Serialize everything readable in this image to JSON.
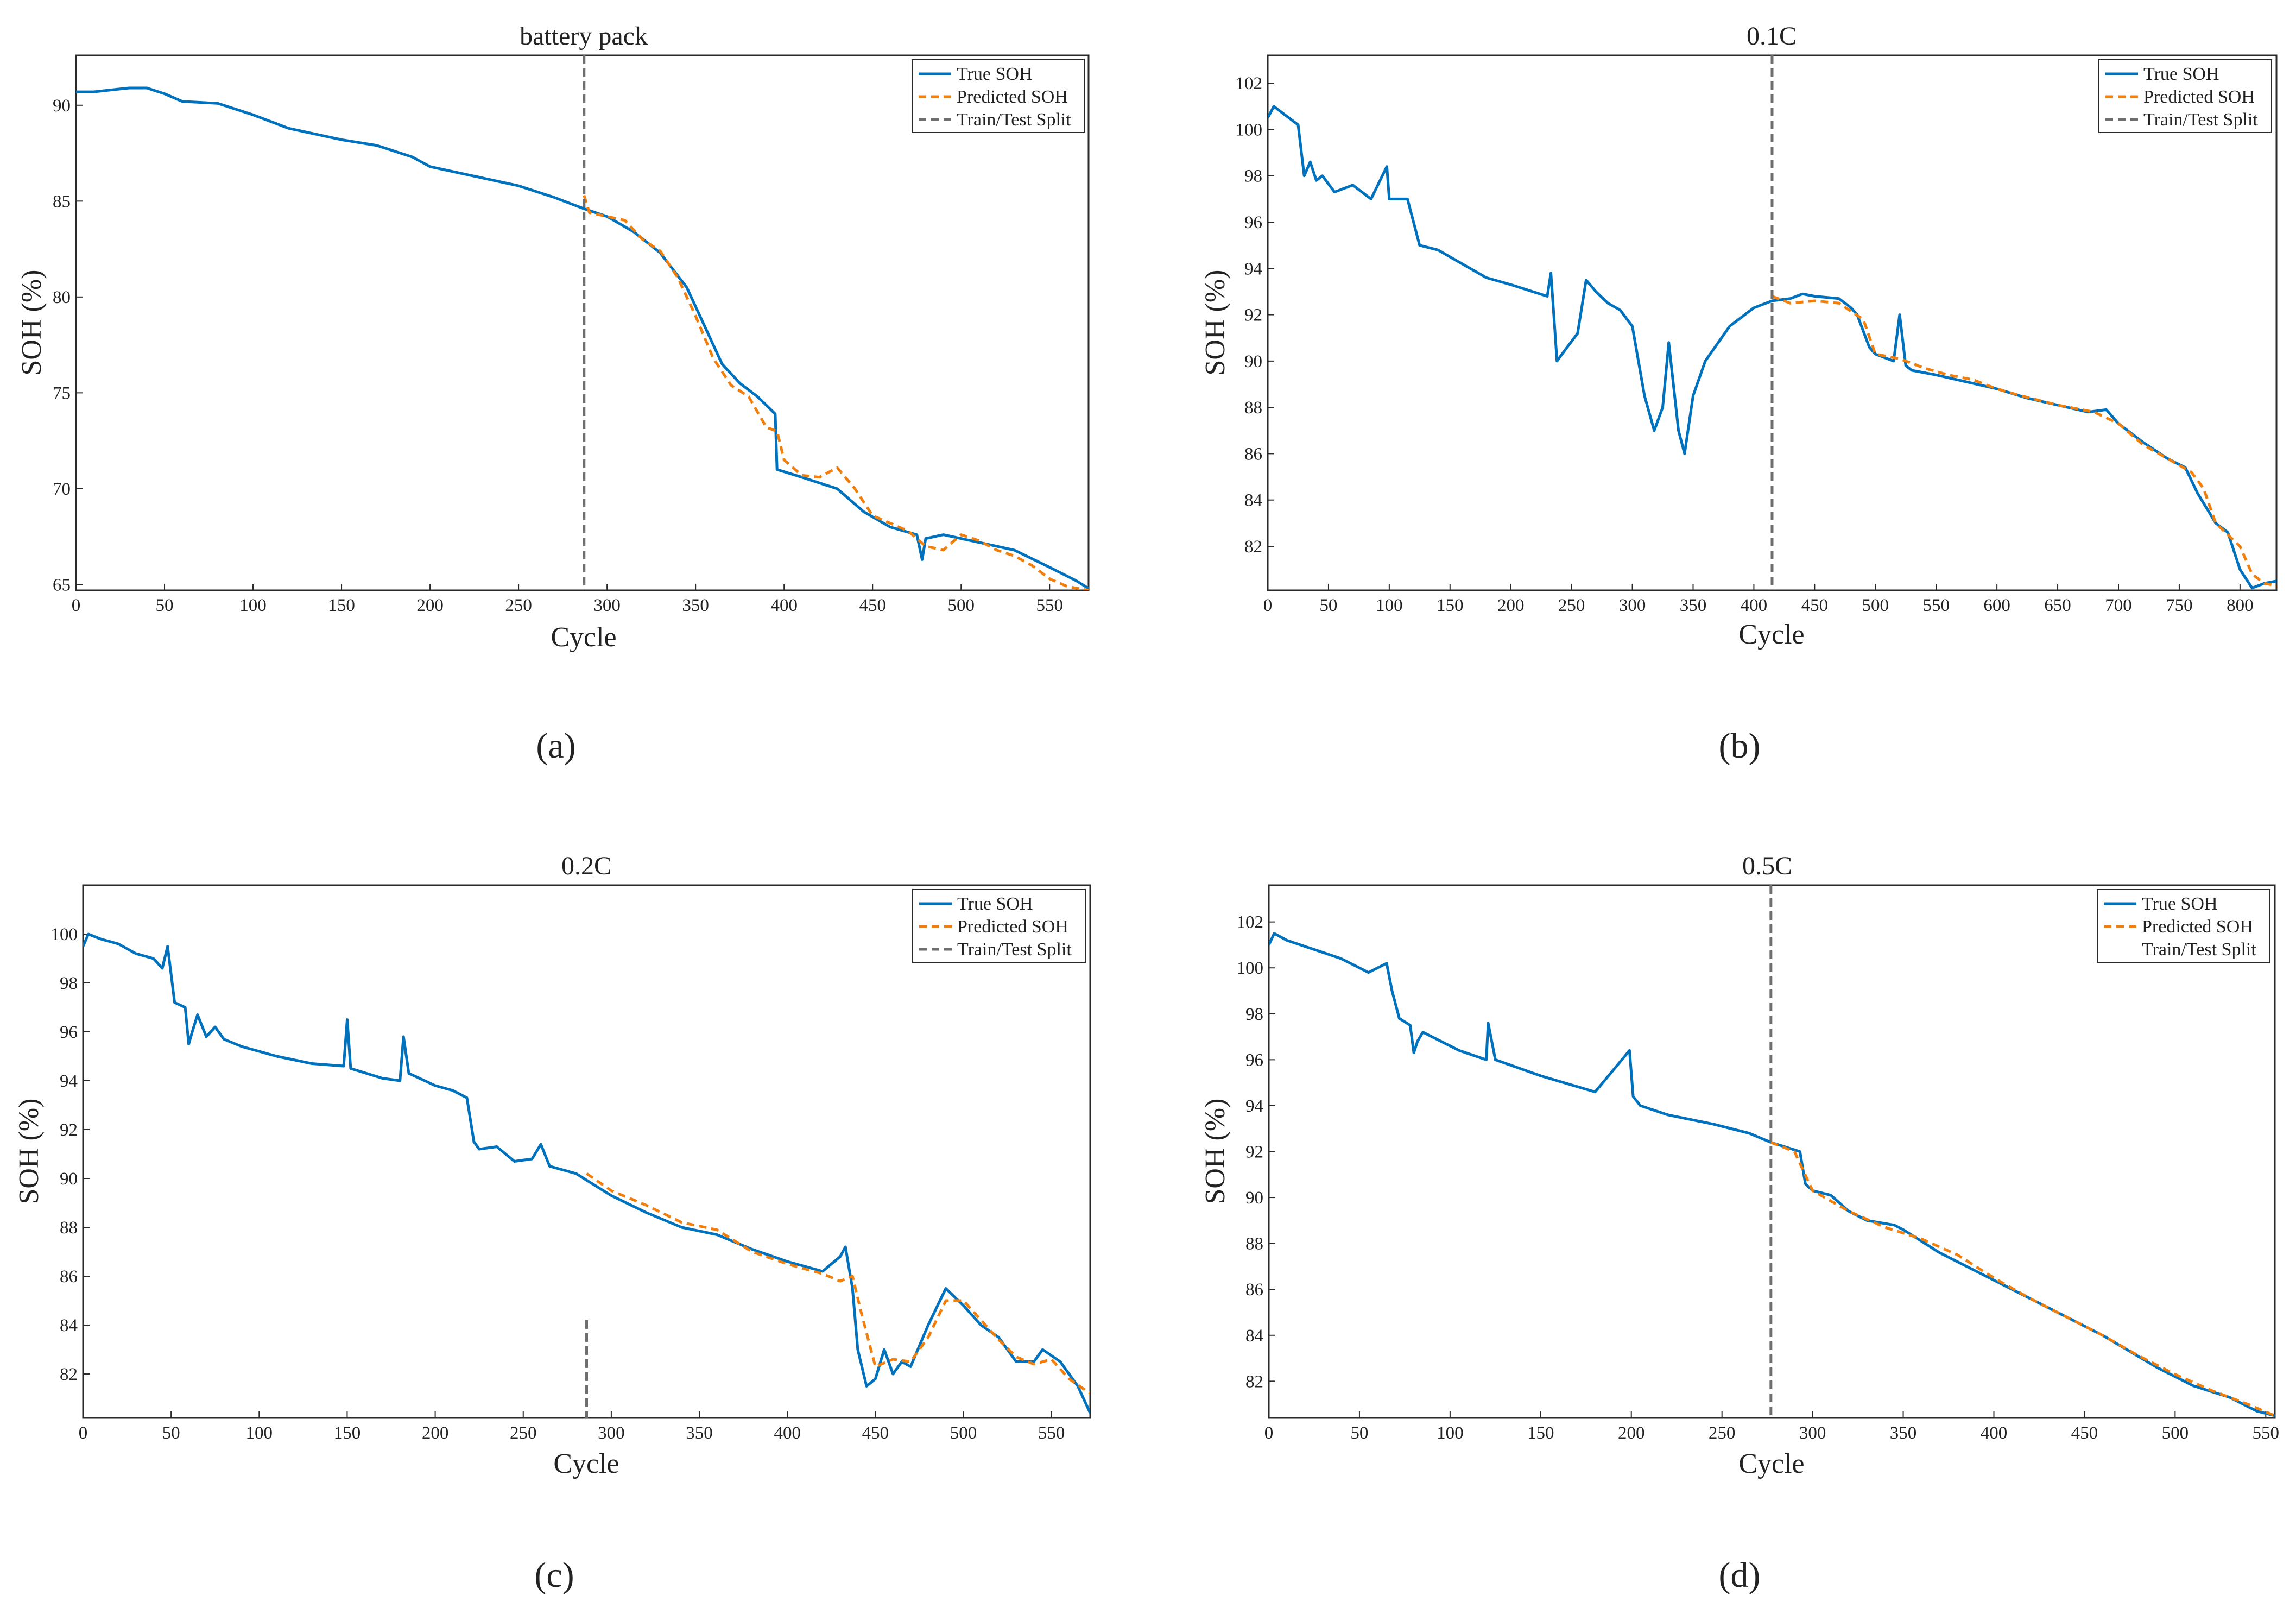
{
  "colors": {
    "true_soh": "#0072BD",
    "predicted_soh": "#F07F0E",
    "split_line": "#6E6E6E",
    "axis": "#2A2A2A"
  },
  "chart_data": [
    {
      "panel": "a",
      "caption": "(a)",
      "type": "line",
      "title": "battery pack",
      "xlabel": "Cycle",
      "ylabel": "SOH (%)",
      "xlim": [
        0,
        572
      ],
      "ylim": [
        64.7,
        92.6
      ],
      "xticks": [
        0,
        50,
        100,
        150,
        200,
        250,
        300,
        350,
        400,
        450,
        500,
        550
      ],
      "yticks": [
        65,
        70,
        75,
        80,
        85,
        90
      ],
      "grid": false,
      "legend": {
        "position": "top-right",
        "entries": [
          "True SOH",
          "Predicted SOH",
          "Train/Test Split"
        ]
      },
      "split": {
        "x": 287,
        "y_from": 64.7,
        "y_to": 92.6
      },
      "series": [
        {
          "name": "True SOH",
          "style": "solid",
          "x": [
            0,
            10,
            20,
            30,
            40,
            50,
            60,
            80,
            100,
            120,
            150,
            170,
            190,
            200,
            220,
            250,
            270,
            287,
            300,
            315,
            330,
            345,
            355,
            365,
            375,
            385,
            395,
            396,
            410,
            430,
            445,
            460,
            475,
            478,
            480,
            490,
            510,
            530,
            550,
            565,
            572
          ],
          "y": [
            90.7,
            90.7,
            90.8,
            90.9,
            90.9,
            90.6,
            90.2,
            90.1,
            89.5,
            88.8,
            88.2,
            87.9,
            87.3,
            86.8,
            86.4,
            85.8,
            85.2,
            84.6,
            84.2,
            83.4,
            82.3,
            80.5,
            78.5,
            76.5,
            75.5,
            74.8,
            73.9,
            71.0,
            70.6,
            70.0,
            68.8,
            68.0,
            67.6,
            66.3,
            67.4,
            67.6,
            67.2,
            66.8,
            65.9,
            65.2,
            64.8
          ]
        },
        {
          "name": "Predicted SOH",
          "style": "dashed",
          "x": [
            287,
            290,
            300,
            310,
            320,
            330,
            340,
            350,
            360,
            370,
            380,
            390,
            396,
            400,
            410,
            420,
            430,
            440,
            450,
            460,
            470,
            480,
            490,
            500,
            510,
            520,
            530,
            540,
            550,
            560,
            572
          ],
          "y": [
            85.3,
            84.4,
            84.2,
            84.0,
            83.0,
            82.4,
            81.0,
            79.0,
            76.8,
            75.4,
            74.8,
            73.2,
            73.0,
            71.5,
            70.7,
            70.6,
            71.1,
            70.0,
            68.6,
            68.2,
            67.8,
            67.0,
            66.8,
            67.6,
            67.3,
            66.8,
            66.5,
            66.0,
            65.3,
            64.9,
            64.7
          ]
        }
      ]
    },
    {
      "panel": "b",
      "caption": "(b)",
      "type": "line",
      "title": "0.1C",
      "xlabel": "Cycle",
      "ylabel": "SOH (%)",
      "xlim": [
        0,
        830
      ],
      "ylim": [
        80.1,
        103.2
      ],
      "xticks": [
        0,
        50,
        100,
        150,
        200,
        250,
        300,
        350,
        400,
        450,
        500,
        550,
        600,
        650,
        700,
        750,
        800
      ],
      "yticks": [
        82,
        84,
        86,
        88,
        90,
        92,
        94,
        96,
        98,
        100,
        102
      ],
      "grid": false,
      "legend": {
        "position": "top-right",
        "entries": [
          "True SOH",
          "Predicted SOH",
          "Train/Test Split"
        ]
      },
      "split": {
        "x": 415,
        "y_from": 80.1,
        "y_to": 103.2
      },
      "series": [
        {
          "name": "True SOH",
          "style": "solid",
          "x": [
            0,
            5,
            15,
            25,
            30,
            35,
            40,
            45,
            55,
            70,
            85,
            98,
            100,
            115,
            120,
            125,
            140,
            160,
            180,
            200,
            230,
            233,
            238,
            245,
            255,
            262,
            270,
            280,
            290,
            300,
            310,
            318,
            325,
            330,
            338,
            343,
            350,
            360,
            380,
            400,
            410,
            415,
            430,
            440,
            450,
            470,
            480,
            485,
            495,
            500,
            515,
            520,
            525,
            530,
            550,
            575,
            600,
            625,
            650,
            675,
            690,
            700,
            720,
            740,
            755,
            765,
            780,
            790,
            800,
            810,
            820,
            830
          ],
          "y": [
            100.5,
            101.0,
            100.6,
            100.2,
            98.0,
            98.6,
            97.8,
            98.0,
            97.3,
            97.6,
            97.0,
            98.4,
            97.0,
            97.0,
            96.0,
            95.0,
            94.8,
            94.2,
            93.6,
            93.3,
            92.8,
            93.8,
            90.0,
            90.5,
            91.2,
            93.5,
            93.0,
            92.5,
            92.2,
            91.5,
            88.5,
            87.0,
            88.0,
            90.8,
            87.0,
            86.0,
            88.5,
            90.0,
            91.5,
            92.3,
            92.5,
            92.6,
            92.7,
            92.9,
            92.8,
            92.7,
            92.3,
            92.0,
            90.6,
            90.3,
            90.0,
            92.0,
            89.8,
            89.6,
            89.4,
            89.1,
            88.8,
            88.4,
            88.1,
            87.8,
            87.9,
            87.3,
            86.5,
            85.8,
            85.4,
            84.3,
            83.0,
            82.6,
            81.0,
            80.2,
            80.4,
            80.5
          ]
        },
        {
          "name": "Predicted SOH",
          "style": "dashed",
          "x": [
            415,
            430,
            450,
            470,
            490,
            500,
            520,
            540,
            560,
            580,
            600,
            620,
            650,
            680,
            700,
            720,
            740,
            760,
            770,
            780,
            800,
            810,
            820,
            830
          ],
          "y": [
            92.8,
            92.5,
            92.6,
            92.5,
            91.8,
            90.3,
            90.1,
            89.7,
            89.4,
            89.2,
            88.8,
            88.5,
            88.1,
            87.8,
            87.3,
            86.4,
            85.8,
            85.2,
            84.5,
            83.0,
            82.0,
            80.8,
            80.4,
            80.3
          ]
        }
      ]
    },
    {
      "panel": "c",
      "caption": "(c)",
      "type": "line",
      "title": "0.2C",
      "xlabel": "Cycle",
      "ylabel": "SOH (%)",
      "xlim": [
        0,
        572
      ],
      "ylim": [
        80.2,
        102.0
      ],
      "xticks": [
        0,
        50,
        100,
        150,
        200,
        250,
        300,
        350,
        400,
        450,
        500,
        550
      ],
      "yticks": [
        82,
        84,
        86,
        88,
        90,
        92,
        94,
        96,
        98,
        100
      ],
      "grid": false,
      "legend": {
        "position": "top-right",
        "entries": [
          "True SOH",
          "Predicted SOH",
          "Train/Test Split"
        ]
      },
      "split": {
        "x": 286,
        "y_from": 80.2,
        "y_to": 84.2
      },
      "series": [
        {
          "name": "True SOH",
          "style": "solid",
          "x": [
            0,
            3,
            10,
            20,
            30,
            40,
            45,
            48,
            52,
            58,
            60,
            62,
            65,
            70,
            75,
            80,
            90,
            110,
            130,
            148,
            150,
            152,
            170,
            180,
            182,
            185,
            200,
            210,
            218,
            222,
            225,
            235,
            245,
            255,
            260,
            265,
            280,
            300,
            320,
            340,
            360,
            380,
            400,
            420,
            430,
            433,
            437,
            440,
            445,
            450,
            455,
            460,
            465,
            470,
            480,
            490,
            500,
            510,
            520,
            530,
            540,
            545,
            555,
            565,
            572
          ],
          "y": [
            99.5,
            100.0,
            99.8,
            99.6,
            99.2,
            99.0,
            98.6,
            99.5,
            97.2,
            97.0,
            95.5,
            96.0,
            96.7,
            95.8,
            96.2,
            95.7,
            95.4,
            95.0,
            94.7,
            94.6,
            96.5,
            94.5,
            94.1,
            94.0,
            95.8,
            94.3,
            93.8,
            93.6,
            93.3,
            91.5,
            91.2,
            91.3,
            90.7,
            90.8,
            91.4,
            90.5,
            90.2,
            89.3,
            88.6,
            88.0,
            87.7,
            87.1,
            86.6,
            86.2,
            86.8,
            87.2,
            85.5,
            83.0,
            81.5,
            81.8,
            83.0,
            82.0,
            82.5,
            82.3,
            84.0,
            85.5,
            84.8,
            84.0,
            83.5,
            82.5,
            82.5,
            83.0,
            82.5,
            81.5,
            80.4
          ]
        },
        {
          "name": "Predicted SOH",
          "style": "dashed",
          "x": [
            286,
            300,
            320,
            340,
            360,
            380,
            400,
            420,
            430,
            437,
            442,
            450,
            460,
            470,
            480,
            490,
            500,
            510,
            520,
            530,
            540,
            550,
            560,
            572
          ],
          "y": [
            90.2,
            89.5,
            88.9,
            88.2,
            87.9,
            87.0,
            86.5,
            86.1,
            85.8,
            86.0,
            84.5,
            82.3,
            82.6,
            82.5,
            83.5,
            85.0,
            85.0,
            84.2,
            83.4,
            82.7,
            82.4,
            82.6,
            81.8,
            81.2
          ]
        }
      ]
    },
    {
      "panel": "d",
      "caption": "(d)",
      "type": "line",
      "title": "0.5C",
      "xlabel": "Cycle",
      "ylabel": "SOH (%)",
      "xlim": [
        0,
        555
      ],
      "ylim": [
        80.4,
        103.6
      ],
      "xticks": [
        0,
        50,
        100,
        150,
        200,
        250,
        300,
        350,
        400,
        450,
        500,
        550
      ],
      "yticks": [
        82,
        84,
        86,
        88,
        90,
        92,
        94,
        96,
        98,
        100,
        102
      ],
      "grid": false,
      "legend": {
        "position": "top-right",
        "entries": [
          "True SOH",
          "Predicted SOH",
          "Train/Test Split"
        ]
      },
      "split": {
        "x": 277,
        "y_from": 80.4,
        "y_to": 103.6
      },
      "series": [
        {
          "name": "True SOH",
          "style": "solid",
          "x": [
            0,
            3,
            10,
            25,
            40,
            55,
            65,
            68,
            72,
            78,
            80,
            82,
            85,
            95,
            105,
            120,
            121,
            125,
            150,
            180,
            199,
            201,
            205,
            220,
            245,
            265,
            277,
            285,
            293,
            296,
            300,
            310,
            320,
            330,
            345,
            350,
            370,
            400,
            430,
            460,
            490,
            510,
            530,
            545,
            555
          ],
          "y": [
            101.0,
            101.5,
            101.2,
            100.8,
            100.4,
            99.8,
            100.2,
            99.0,
            97.8,
            97.5,
            96.3,
            96.8,
            97.2,
            96.8,
            96.4,
            96.0,
            97.6,
            96.0,
            95.3,
            94.6,
            96.4,
            94.4,
            94.0,
            93.6,
            93.2,
            92.8,
            92.4,
            92.2,
            92.0,
            90.6,
            90.3,
            90.1,
            89.4,
            89.0,
            88.8,
            88.6,
            87.6,
            86.4,
            85.2,
            84.0,
            82.6,
            81.8,
            81.3,
            80.7,
            80.5
          ]
        },
        {
          "name": "Predicted SOH",
          "style": "dashed",
          "x": [
            277,
            290,
            300,
            320,
            340,
            360,
            380,
            400,
            420,
            440,
            460,
            480,
            500,
            520,
            540,
            555
          ],
          "y": [
            92.4,
            92.0,
            90.3,
            89.4,
            88.7,
            88.2,
            87.5,
            86.5,
            85.6,
            84.8,
            84.0,
            83.1,
            82.3,
            81.6,
            81.0,
            80.5
          ]
        }
      ]
    }
  ]
}
